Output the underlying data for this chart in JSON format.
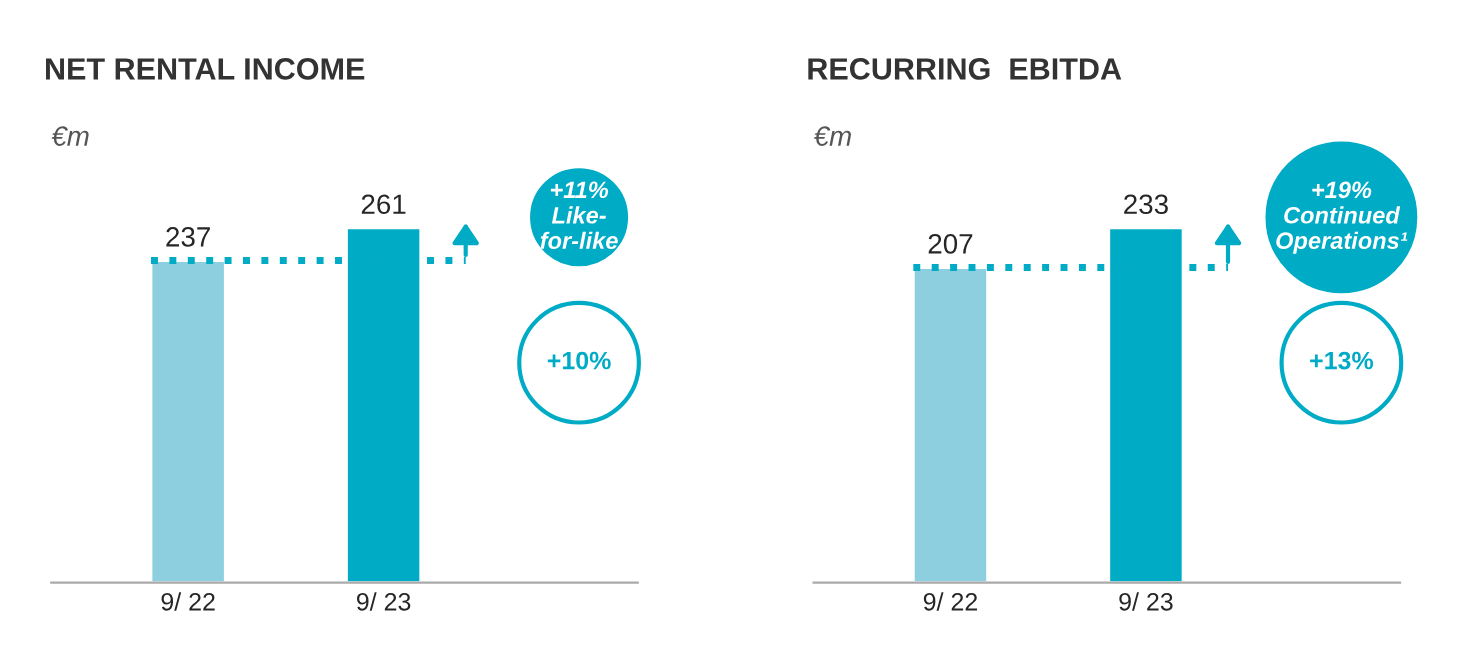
{
  "chart_data": [
    {
      "type": "bar",
      "title": "NET RENTAL INCOME",
      "ylabel": "€m",
      "categories": [
        "9/ 22",
        "9/ 23"
      ],
      "values": [
        237,
        261
      ],
      "colors": [
        "#8ecfdf",
        "#00abc5"
      ],
      "data_labels": true,
      "grid": false,
      "legend": false,
      "ref_lines": [
        {
          "axis": "y",
          "value": 237,
          "color": "#00abc5",
          "line_style": "dotted"
        }
      ],
      "annotations": [
        "+11%\nLike-\nfor-like",
        "+10%"
      ]
    },
    {
      "type": "bar",
      "title": "RECURRING  EBITDA",
      "ylabel": "€m",
      "categories": [
        "9/ 22",
        "9/ 23"
      ],
      "values": [
        207,
        233
      ],
      "colors": [
        "#8ecfdf",
        "#00abc5"
      ],
      "data_labels": true,
      "grid": false,
      "legend": false,
      "ref_lines": [
        {
          "axis": "y",
          "value": 207,
          "color": "#00abc5",
          "line_style": "dotted"
        }
      ],
      "annotations": [
        "+19%\nContinued\nOperations¹",
        "+13%"
      ]
    }
  ]
}
